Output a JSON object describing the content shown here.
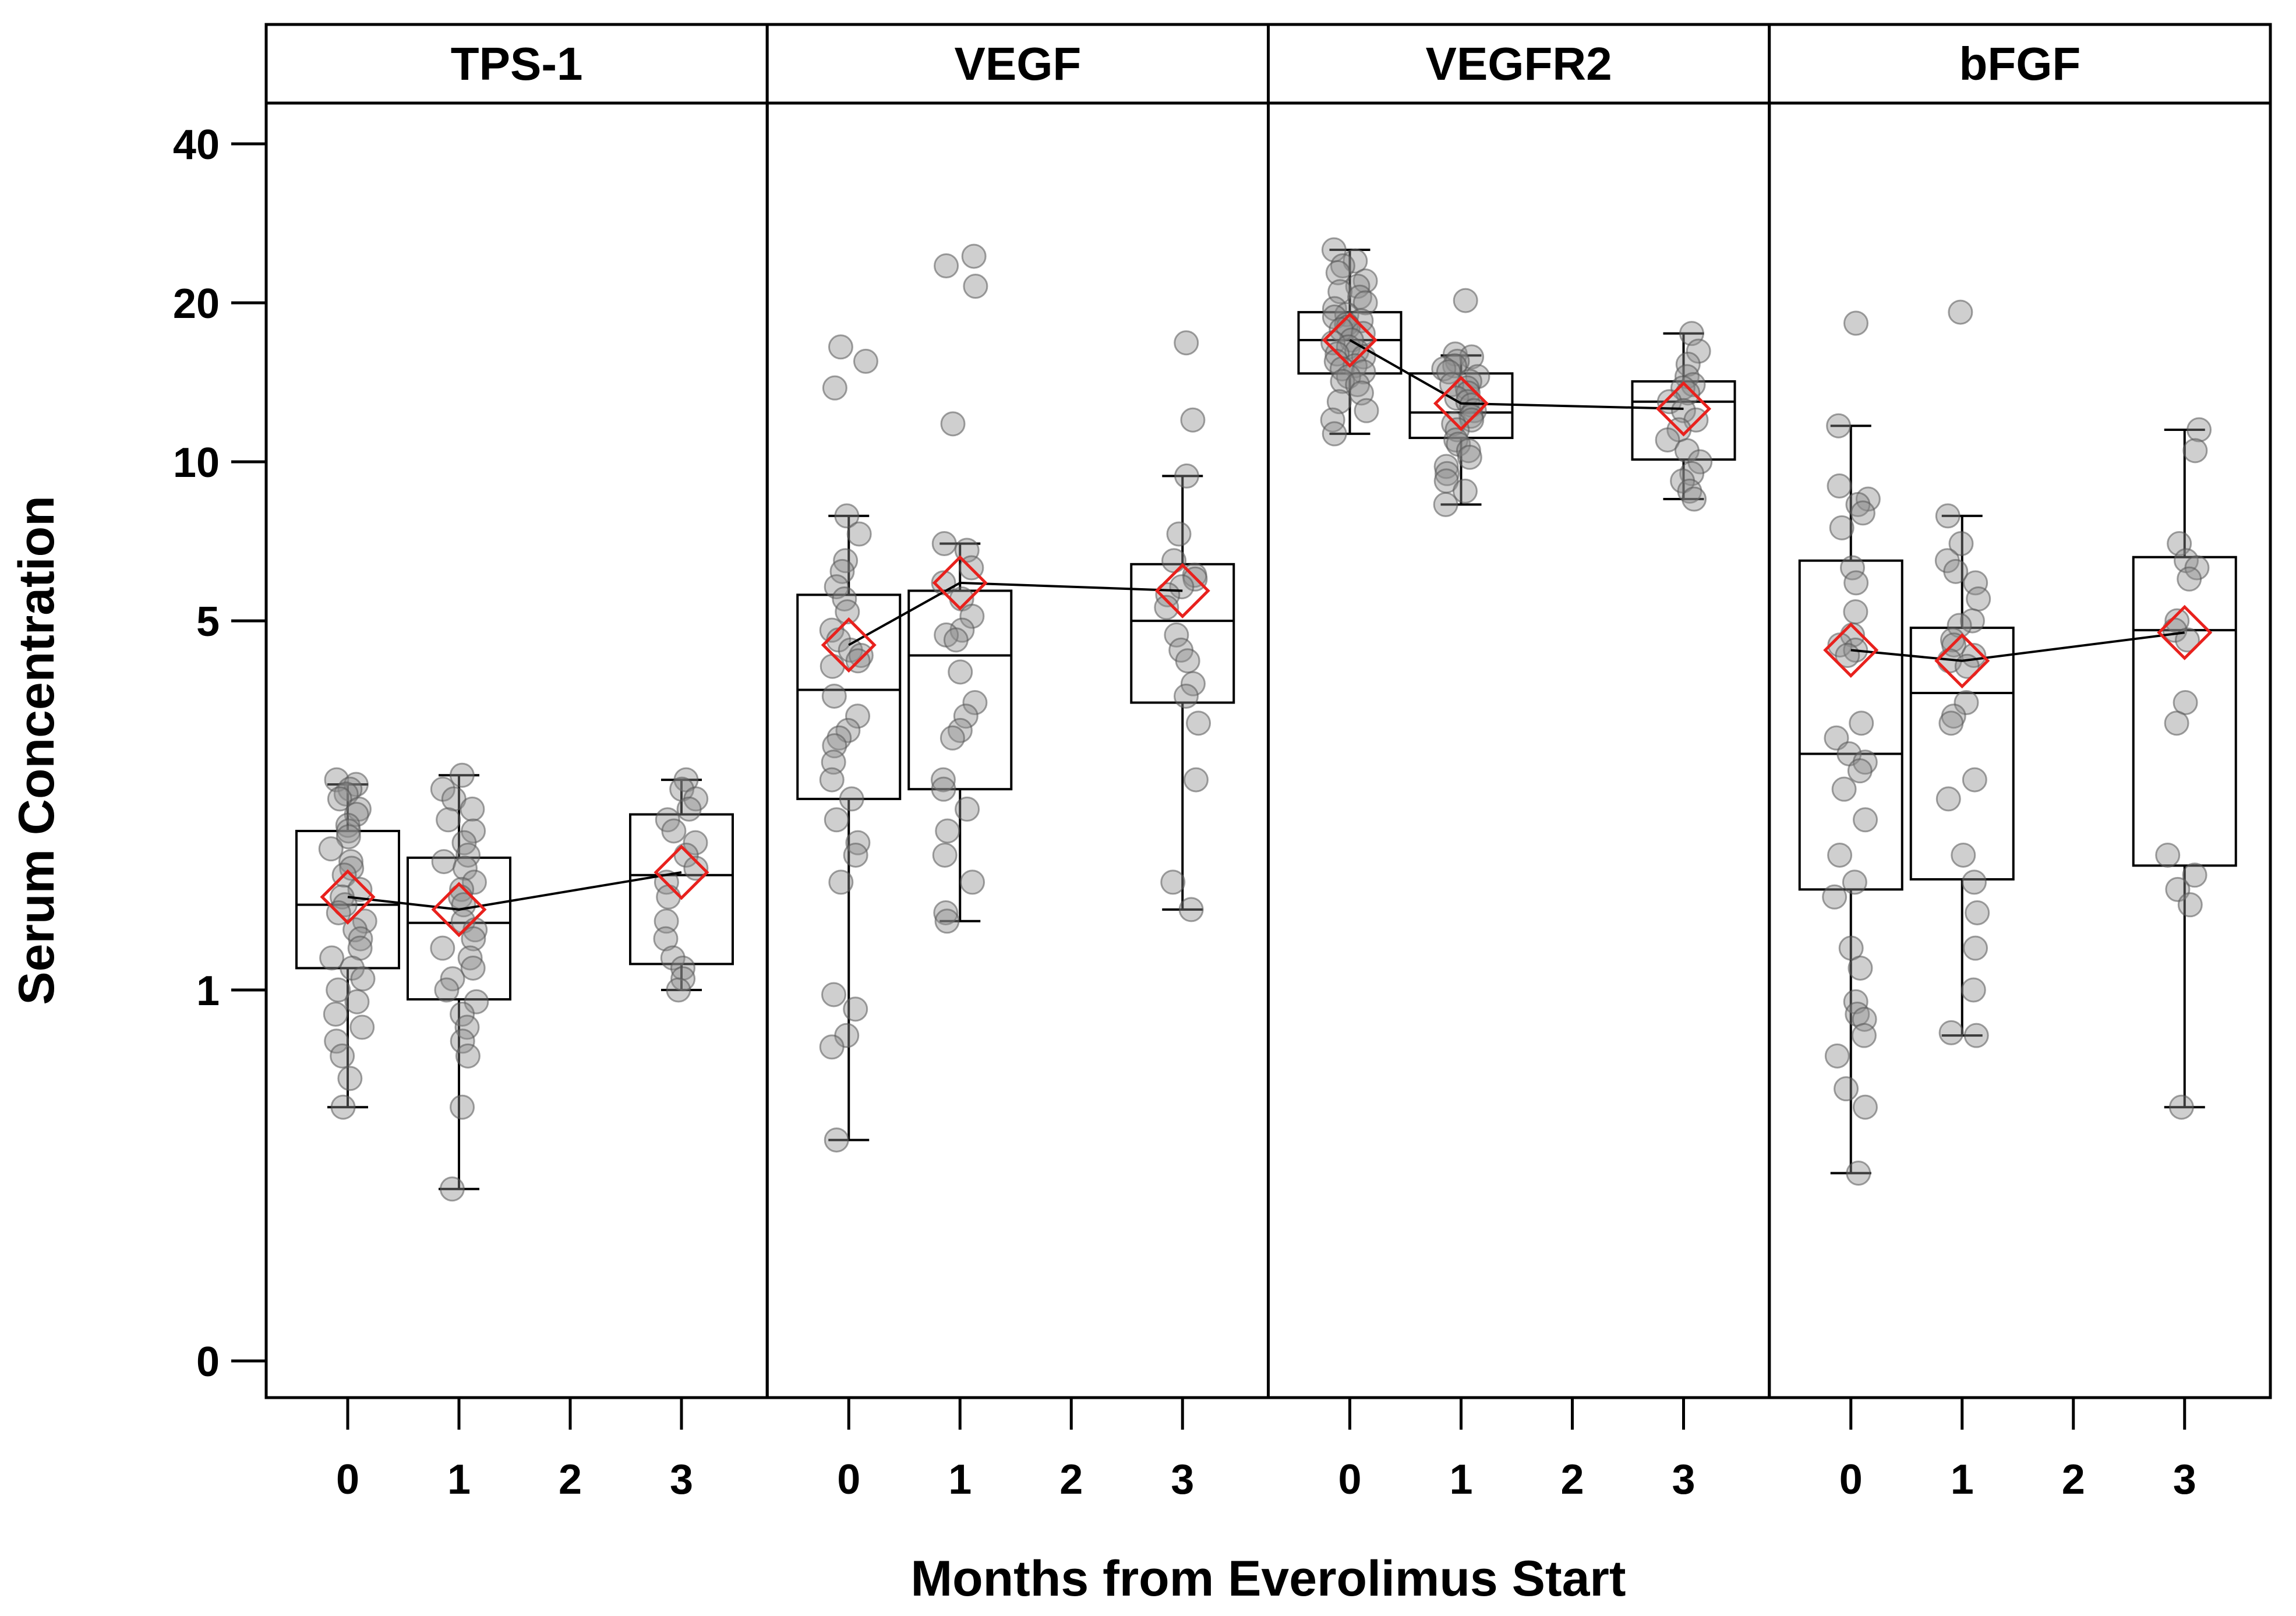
{
  "chart_data": {
    "type": "box",
    "xlabel": "Months from Everolimus Start",
    "ylabel": "Serum Concentration",
    "y_scale": "log",
    "y_ticks": [
      {
        "label": "40",
        "value": 40
      },
      {
        "label": "20",
        "value": 20
      },
      {
        "label": "10",
        "value": 10
      },
      {
        "label": "5",
        "value": 5
      },
      {
        "label": "1",
        "value": 1
      },
      {
        "label": "0",
        "value": 0
      }
    ],
    "x_ticks": [
      "0",
      "1",
      "2",
      "3"
    ],
    "colors": {
      "mean_marker": "#e8211d",
      "points": "#8c8c8c",
      "frame": "#000000"
    },
    "panels": [
      {
        "name": "TPS-1",
        "groups": [
          {
            "month": 0,
            "wmin": 0.6,
            "q1": 1.1,
            "median": 1.45,
            "q3": 2.0,
            "wmax": 2.45,
            "mean": 1.5,
            "points": [
              2.5,
              2.45,
              2.4,
              2.35,
              2.3,
              2.2,
              2.15,
              2.05,
              2.0,
              1.95,
              1.85,
              1.75,
              1.7,
              1.65,
              1.55,
              1.5,
              1.45,
              1.4,
              1.35,
              1.3,
              1.25,
              1.2,
              1.15,
              1.1,
              1.05,
              1.0,
              0.95,
              0.9,
              0.85,
              0.8,
              0.75,
              0.68,
              0.6
            ]
          },
          {
            "month": 1,
            "wmin": 0.42,
            "q1": 0.96,
            "median": 1.34,
            "q3": 1.78,
            "wmax": 2.55,
            "mean": 1.42,
            "points": [
              2.55,
              2.4,
              2.3,
              2.2,
              2.1,
              2.0,
              1.9,
              1.8,
              1.75,
              1.7,
              1.6,
              1.55,
              1.5,
              1.45,
              1.35,
              1.3,
              1.25,
              1.2,
              1.15,
              1.1,
              1.05,
              1.0,
              0.95,
              0.9,
              0.85,
              0.8,
              0.75,
              0.6,
              0.42
            ]
          },
          {
            "month": 3,
            "wmin": 1.0,
            "q1": 1.12,
            "median": 1.65,
            "q3": 2.15,
            "wmax": 2.5,
            "mean": 1.67,
            "points": [
              2.5,
              2.4,
              2.3,
              2.2,
              2.1,
              2.0,
              1.9,
              1.8,
              1.7,
              1.6,
              1.5,
              1.35,
              1.25,
              1.15,
              1.1,
              1.05,
              1.0
            ]
          }
        ]
      },
      {
        "name": "VEGF",
        "groups": [
          {
            "month": 0,
            "wmin": 0.52,
            "q1": 2.3,
            "median": 3.7,
            "q3": 5.6,
            "wmax": 7.9,
            "mean": 4.5,
            "points": [
              16.5,
              15.5,
              13.8,
              7.9,
              7.3,
              6.5,
              6.2,
              5.8,
              5.5,
              5.2,
              4.8,
              4.6,
              4.4,
              4.3,
              4.2,
              4.1,
              3.6,
              3.3,
              3.1,
              3.0,
              2.9,
              2.7,
              2.5,
              2.3,
              2.1,
              1.9,
              1.8,
              1.6,
              0.98,
              0.92,
              0.82,
              0.78,
              0.52
            ]
          },
          {
            "month": 1,
            "wmin": 1.35,
            "q1": 2.4,
            "median": 4.3,
            "q3": 5.7,
            "wmax": 7.0,
            "mean": 5.9,
            "points": [
              24.5,
              23.5,
              21.5,
              11.8,
              7.0,
              6.8,
              6.3,
              5.9,
              5.5,
              5.1,
              4.8,
              4.7,
              4.6,
              4.0,
              3.5,
              3.3,
              3.1,
              3.0,
              2.5,
              2.4,
              2.2,
              2.0,
              1.8,
              1.6,
              1.4,
              1.35
            ]
          },
          {
            "month": 3,
            "wmin": 1.42,
            "q1": 3.5,
            "median": 5.0,
            "q3": 6.4,
            "wmax": 9.4,
            "mean": 5.7,
            "points": [
              16.8,
              12.0,
              9.4,
              7.3,
              6.5,
              6.1,
              6.0,
              5.8,
              5.6,
              5.3,
              4.7,
              4.4,
              4.2,
              3.8,
              3.6,
              3.2,
              2.5,
              1.6,
              1.42
            ]
          }
        ]
      },
      {
        "name": "VEGFR2",
        "groups": [
          {
            "month": 0,
            "wmin": 11.3,
            "q1": 14.7,
            "median": 17.0,
            "q3": 19.2,
            "wmax": 25.2,
            "mean": 17.0,
            "points": [
              25.2,
              24.0,
              23.5,
              22.8,
              22.0,
              21.5,
              21.0,
              20.5,
              20.0,
              19.5,
              19.0,
              18.8,
              18.5,
              18.2,
              18.0,
              17.8,
              17.5,
              17.0,
              16.8,
              16.5,
              16.2,
              16.0,
              15.8,
              15.5,
              15.2,
              15.0,
              14.8,
              14.5,
              14.2,
              14.0,
              13.5,
              13.0,
              12.5,
              12.0,
              11.3
            ]
          },
          {
            "month": 1,
            "wmin": 8.3,
            "q1": 11.1,
            "median": 12.4,
            "q3": 14.7,
            "wmax": 15.9,
            "mean": 12.9,
            "points": [
              20.2,
              16.0,
              15.8,
              15.5,
              15.2,
              15.0,
              14.8,
              14.5,
              14.2,
              14.0,
              13.8,
              13.5,
              13.2,
              13.0,
              12.8,
              12.5,
              12.2,
              12.0,
              11.8,
              11.5,
              11.0,
              10.8,
              10.5,
              10.2,
              9.8,
              9.5,
              9.2,
              8.8,
              8.3
            ]
          },
          {
            "month": 3,
            "wmin": 8.5,
            "q1": 10.1,
            "median": 13.0,
            "q3": 14.2,
            "wmax": 17.5,
            "mean": 12.6,
            "points": [
              17.5,
              16.2,
              15.3,
              14.5,
              14.0,
              13.8,
              13.5,
              13.0,
              12.5,
              12.0,
              11.5,
              11.0,
              10.5,
              10.0,
              9.5,
              9.2,
              8.8,
              8.5
            ]
          }
        ]
      },
      {
        "name": "bFGF",
        "groups": [
          {
            "month": 0,
            "wmin": 0.45,
            "q1": 1.55,
            "median": 2.8,
            "q3": 6.5,
            "wmax": 11.7,
            "mean": 4.4,
            "points": [
              18.3,
              11.7,
              9.0,
              8.5,
              8.3,
              8.0,
              7.5,
              6.3,
              5.9,
              5.2,
              4.7,
              4.5,
              4.4,
              4.3,
              3.2,
              3.0,
              2.8,
              2.7,
              2.6,
              2.4,
              2.1,
              1.8,
              1.6,
              1.5,
              1.2,
              1.1,
              0.95,
              0.9,
              0.88,
              0.82,
              0.75,
              0.65,
              0.6,
              0.45
            ]
          },
          {
            "month": 1,
            "wmin": 0.82,
            "q1": 1.62,
            "median": 3.65,
            "q3": 4.85,
            "wmax": 7.9,
            "mean": 4.2,
            "points": [
              19.2,
              7.9,
              7.0,
              6.5,
              6.2,
              5.9,
              5.5,
              5.0,
              4.9,
              4.6,
              4.5,
              4.3,
              4.2,
              4.1,
              3.5,
              3.3,
              3.2,
              2.5,
              2.3,
              1.8,
              1.6,
              1.4,
              1.2,
              1.0,
              0.83,
              0.82
            ]
          },
          {
            "month": 3,
            "wmin": 0.6,
            "q1": 1.72,
            "median": 4.8,
            "q3": 6.6,
            "wmax": 11.5,
            "mean": 4.75,
            "points": [
              11.5,
              10.5,
              7.0,
              6.5,
              6.3,
              6.0,
              5.0,
              4.8,
              4.6,
              3.5,
              3.2,
              1.8,
              1.65,
              1.55,
              1.45,
              0.6
            ]
          }
        ]
      }
    ]
  }
}
